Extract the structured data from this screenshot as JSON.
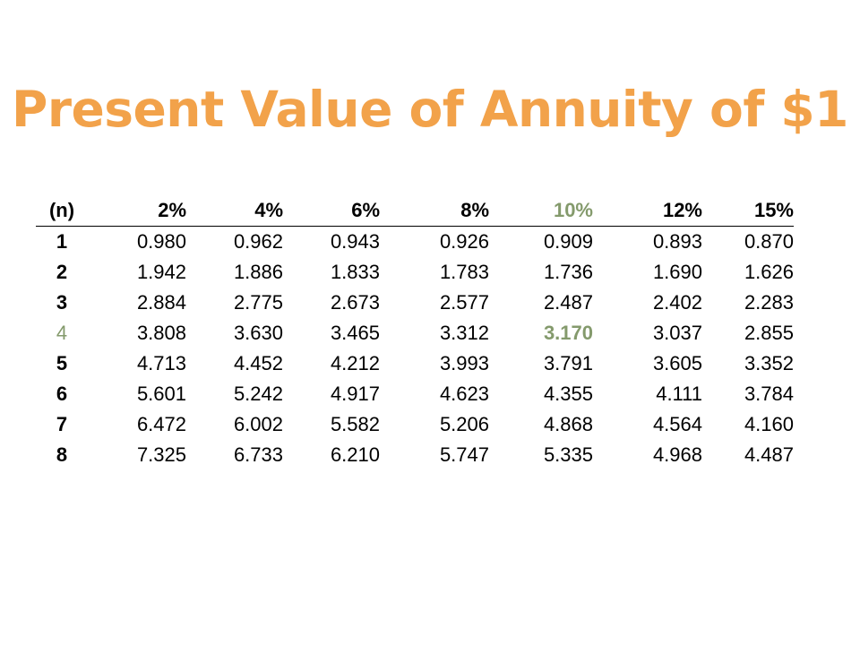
{
  "title": "Present Value of Annuity of $1",
  "colors": {
    "title": "#f2a24a",
    "highlight": "#849a6c",
    "text": "#000000",
    "background": "#ffffff"
  },
  "table": {
    "headers": [
      "(n)",
      "2%",
      "4%",
      "6%",
      "8%",
      "10%",
      "12%",
      "15%"
    ],
    "highlight_column": 5,
    "highlight_row": 3,
    "rows": [
      [
        "1",
        "0.980",
        "0.962",
        "0.943",
        "0.926",
        "0.909",
        "0.893",
        "0.870"
      ],
      [
        "2",
        "1.942",
        "1.886",
        "1.833",
        "1.783",
        "1.736",
        "1.690",
        "1.626"
      ],
      [
        "3",
        "2.884",
        "2.775",
        "2.673",
        "2.577",
        "2.487",
        "2.402",
        "2.283"
      ],
      [
        "4",
        "3.808",
        "3.630",
        "3.465",
        "3.312",
        "3.170",
        "3.037",
        "2.855"
      ],
      [
        "5",
        "4.713",
        "4.452",
        "4.212",
        "3.993",
        "3.791",
        "3.605",
        "3.352"
      ],
      [
        "6",
        "5.601",
        "5.242",
        "4.917",
        "4.623",
        "4.355",
        "4.111",
        "3.784"
      ],
      [
        "7",
        "6.472",
        "6.002",
        "5.582",
        "5.206",
        "4.868",
        "4.564",
        "4.160"
      ],
      [
        "8",
        "7.325",
        "6.733",
        "6.210",
        "5.747",
        "5.335",
        "4.968",
        "4.487"
      ]
    ]
  }
}
